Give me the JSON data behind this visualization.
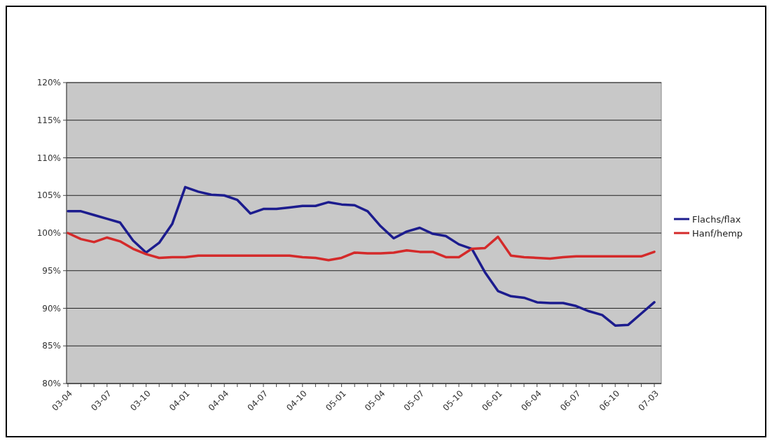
{
  "chart_data": {
    "type": "line",
    "categories": [
      "03-04",
      null,
      null,
      "03-07",
      null,
      null,
      "03-10",
      null,
      null,
      "04-01",
      null,
      null,
      "04-04",
      null,
      null,
      "04-07",
      null,
      null,
      "04-10",
      null,
      null,
      "05-01",
      null,
      null,
      "05-04",
      null,
      null,
      "05-07",
      null,
      null,
      "05-10",
      null,
      null,
      "06-01",
      null,
      null,
      "06-04",
      null,
      null,
      "06-07",
      null,
      null,
      "06-10",
      null,
      null,
      "07-03"
    ],
    "series": [
      {
        "name": "Flachs/flax",
        "color": "#1c1c8e",
        "values": [
          102.9,
          102.9,
          102.4,
          101.9,
          101.4,
          99.0,
          97.4,
          98.7,
          101.2,
          106.1,
          105.5,
          105.1,
          105.0,
          104.4,
          102.6,
          103.2,
          103.2,
          103.4,
          103.6,
          103.6,
          104.1,
          103.8,
          103.7,
          102.9,
          100.9,
          99.3,
          100.2,
          100.7,
          99.9,
          99.6,
          98.5,
          97.9,
          94.8,
          92.3,
          91.6,
          91.4,
          90.8,
          90.7,
          90.7,
          90.3,
          89.6,
          89.1,
          87.7,
          87.8,
          89.3,
          90.8
        ]
      },
      {
        "name": "Hanf/hemp",
        "color": "#d42a2a",
        "values": [
          100.0,
          99.2,
          98.8,
          99.4,
          98.9,
          97.9,
          97.2,
          96.7,
          96.8,
          96.8,
          97.0,
          97.0,
          97.0,
          97.0,
          97.0,
          97.0,
          97.0,
          97.0,
          96.8,
          96.7,
          96.4,
          96.7,
          97.4,
          97.3,
          97.3,
          97.4,
          97.7,
          97.5,
          97.5,
          96.8,
          96.8,
          97.9,
          98.0,
          99.5,
          97.0,
          96.8,
          96.7,
          96.6,
          96.8,
          96.9,
          96.9,
          96.9,
          96.9,
          96.9,
          96.9,
          97.5
        ]
      }
    ],
    "ylim": [
      80,
      120
    ],
    "yticks": [
      {
        "value": 80,
        "label": "80%"
      },
      {
        "value": 85,
        "label": "85%"
      },
      {
        "value": 90,
        "label": "90%"
      },
      {
        "value": 95,
        "label": "95%"
      },
      {
        "value": 100,
        "label": "100%"
      },
      {
        "value": 105,
        "label": "105%"
      },
      {
        "value": 110,
        "label": "110%"
      },
      {
        "value": 115,
        "label": "115%"
      },
      {
        "value": 120,
        "label": "120%"
      }
    ],
    "grid": "y",
    "legend": "right",
    "marker": "none",
    "line_style": "solid"
  }
}
